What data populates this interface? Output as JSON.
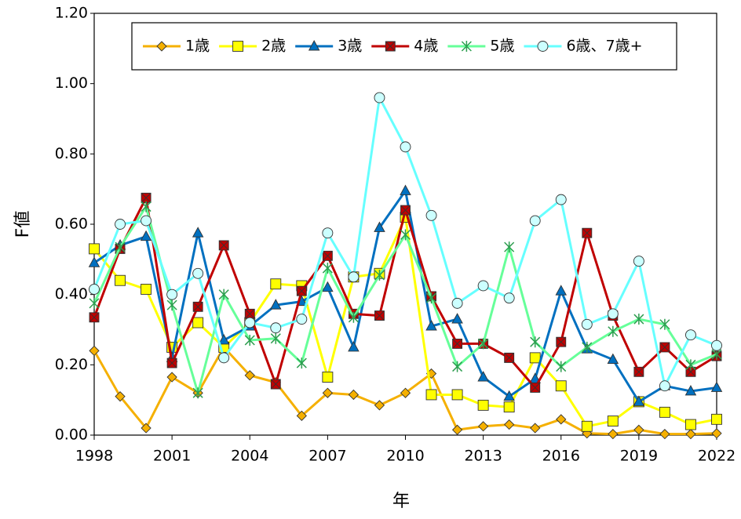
{
  "chart_data": {
    "type": "line",
    "x": [
      1998,
      1999,
      2000,
      2001,
      2002,
      2003,
      2004,
      2005,
      2006,
      2007,
      2008,
      2009,
      2010,
      2011,
      2012,
      2013,
      2014,
      2015,
      2016,
      2017,
      2018,
      2019,
      2020,
      2021,
      2022
    ],
    "xlim": [
      1998,
      2022
    ],
    "xticks": [
      1998,
      2001,
      2004,
      2007,
      2010,
      2013,
      2016,
      2019,
      2022
    ],
    "ylim": [
      0,
      1.2
    ],
    "yticks": [
      {
        "value": 0,
        "label": "0.00"
      },
      {
        "value": 0.2,
        "label": "0.20"
      },
      {
        "value": 0.4,
        "label": "0.40"
      },
      {
        "value": 0.6,
        "label": "0.60"
      },
      {
        "value": 0.8,
        "label": "0.80"
      },
      {
        "value": 1.0,
        "label": "1.00"
      },
      {
        "value": 1.2,
        "label": "1.20"
      }
    ],
    "x_label": "年",
    "y_label": "F値",
    "legend": "top",
    "series": [
      {
        "name": "1歳",
        "color": "#f5b000",
        "marker": "diamond",
        "values": [
          0.24,
          0.11,
          0.02,
          0.165,
          0.12,
          0.25,
          0.17,
          0.15,
          0.055,
          0.12,
          0.115,
          0.085,
          0.12,
          0.175,
          0.015,
          0.025,
          0.03,
          0.02,
          0.045,
          0.005,
          0.003,
          0.015,
          0.003,
          0.003,
          0.005
        ]
      },
      {
        "name": "2歳",
        "color": "#ffff00",
        "marker": "square",
        "values": [
          0.53,
          0.44,
          0.415,
          0.25,
          0.32,
          0.25,
          0.32,
          0.43,
          0.425,
          0.165,
          0.45,
          0.46,
          0.62,
          0.115,
          0.115,
          0.085,
          0.08,
          0.22,
          0.14,
          0.025,
          0.04,
          0.095,
          0.065,
          0.03,
          0.045
        ]
      },
      {
        "name": "3歳",
        "color": "#0070c0",
        "marker": "triangle",
        "values": [
          0.49,
          0.54,
          0.565,
          0.22,
          0.575,
          0.27,
          0.31,
          0.37,
          0.38,
          0.42,
          0.25,
          0.59,
          0.695,
          0.31,
          0.33,
          0.165,
          0.11,
          0.16,
          0.41,
          0.245,
          0.215,
          0.095,
          0.14,
          0.125,
          0.135
        ]
      },
      {
        "name": "4歳",
        "color": "#c00000",
        "marker": "xsquare",
        "values": [
          0.335,
          0.53,
          0.675,
          0.205,
          0.365,
          0.54,
          0.345,
          0.145,
          0.41,
          0.51,
          0.345,
          0.34,
          0.64,
          0.395,
          0.26,
          0.26,
          0.22,
          0.135,
          0.265,
          0.575,
          0.34,
          0.18,
          0.25,
          0.18,
          0.225
        ]
      },
      {
        "name": "5歳",
        "color": "#66ff99",
        "marker": "star",
        "values": [
          0.375,
          0.535,
          0.65,
          0.37,
          0.12,
          0.4,
          0.27,
          0.275,
          0.205,
          0.475,
          0.335,
          0.455,
          0.57,
          0.39,
          0.195,
          0.26,
          0.535,
          0.265,
          0.195,
          0.25,
          0.295,
          0.33,
          0.315,
          0.2,
          0.23
        ]
      },
      {
        "name": "6歳、7歳+",
        "color": "#66ffff",
        "marker": "circle",
        "values": [
          0.415,
          0.6,
          0.61,
          0.4,
          0.46,
          0.22,
          0.32,
          0.305,
          0.33,
          0.575,
          0.45,
          0.96,
          0.82,
          0.625,
          0.375,
          0.425,
          0.39,
          0.61,
          0.67,
          0.315,
          0.345,
          0.495,
          0.14,
          0.285,
          0.255
        ]
      }
    ]
  }
}
